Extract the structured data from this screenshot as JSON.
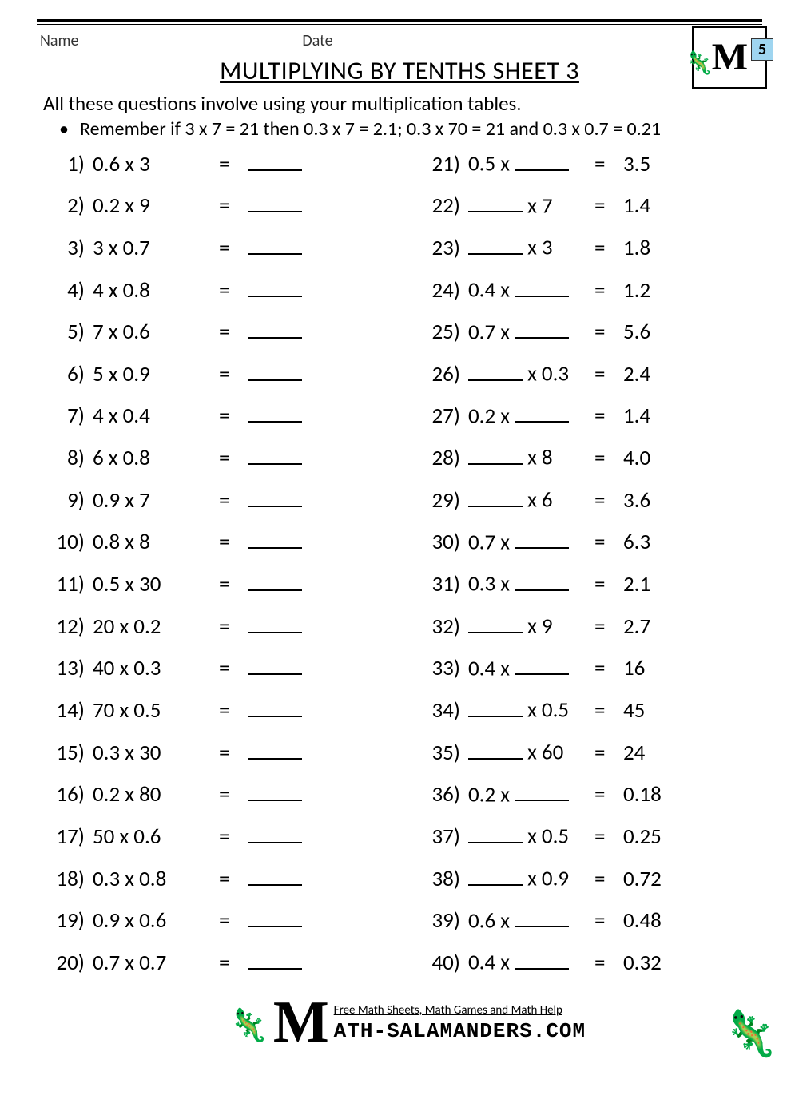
{
  "header": {
    "name_label": "Name",
    "date_label": "Date"
  },
  "badge": {
    "grade": "5"
  },
  "title": "MULTIPLYING BY TENTHS SHEET 3",
  "intro": "All these questions involve using your multiplication tables.",
  "bullet": "Remember if 3 x 7 = 21 then 0.3 x 7 = 2.1; 0.3 x 70 = 21 and 0.3 x 0.7 = 0.21",
  "left": [
    {
      "n": "1)",
      "e": "0.6 x 3"
    },
    {
      "n": "2)",
      "e": "0.2 x 9"
    },
    {
      "n": "3)",
      "e": "3 x 0.7"
    },
    {
      "n": "4)",
      "e": "4 x 0.8"
    },
    {
      "n": "5)",
      "e": "7 x 0.6"
    },
    {
      "n": "6)",
      "e": "5 x 0.9"
    },
    {
      "n": "7)",
      "e": "4 x 0.4"
    },
    {
      "n": "8)",
      "e": "6 x 0.8"
    },
    {
      "n": "9)",
      "e": "0.9 x 7"
    },
    {
      "n": "10)",
      "e": "0.8 x 8"
    },
    {
      "n": "11)",
      "e": "0.5 x 30"
    },
    {
      "n": "12)",
      "e": "20 x 0.2"
    },
    {
      "n": "13)",
      "e": "40 x 0.3"
    },
    {
      "n": "14)",
      "e": "70 x 0.5"
    },
    {
      "n": "15)",
      "e": "0.3 x 30"
    },
    {
      "n": "16)",
      "e": "0.2 x 80"
    },
    {
      "n": "17)",
      "e": "50 x 0.6"
    },
    {
      "n": "18)",
      "e": "0.3 x 0.8"
    },
    {
      "n": "19)",
      "e": "0.9 x 0.6"
    },
    {
      "n": "20)",
      "e": "0.7 x 0.7"
    }
  ],
  "right": [
    {
      "n": "21)",
      "pre": "0.5 x ",
      "post": "",
      "a": "3.5"
    },
    {
      "n": "22)",
      "pre": "",
      "post": " x 7",
      "a": "1.4"
    },
    {
      "n": "23)",
      "pre": "",
      "post": " x 3",
      "a": "1.8"
    },
    {
      "n": "24)",
      "pre": "0.4 x ",
      "post": "",
      "a": "1.2"
    },
    {
      "n": "25)",
      "pre": "0.7 x ",
      "post": "",
      "a": "5.6"
    },
    {
      "n": "26)",
      "pre": "",
      "post": " x 0.3",
      "a": "2.4"
    },
    {
      "n": "27)",
      "pre": "0.2 x ",
      "post": "",
      "a": "1.4"
    },
    {
      "n": "28)",
      "pre": "",
      "post": " x 8",
      "a": "4.0"
    },
    {
      "n": "29)",
      "pre": "",
      "post": " x 6",
      "a": "3.6"
    },
    {
      "n": "30)",
      "pre": "0.7 x ",
      "post": "",
      "a": "6.3"
    },
    {
      "n": "31)",
      "pre": "0.3 x ",
      "post": "",
      "a": "2.1"
    },
    {
      "n": "32)",
      "pre": "",
      "post": " x 9",
      "a": "2.7"
    },
    {
      "n": "33)",
      "pre": "0.4 x ",
      "post": "",
      "a": "16"
    },
    {
      "n": "34)",
      "pre": "",
      "post": " x 0.5",
      "a": "45"
    },
    {
      "n": "35)",
      "pre": "",
      "post": " x 60",
      "a": "24"
    },
    {
      "n": "36)",
      "pre": "0.2 x ",
      "post": "",
      "a": "0.18"
    },
    {
      "n": "37)",
      "pre": "",
      "post": " x 0.5",
      "a": "0.25"
    },
    {
      "n": "38)",
      "pre": "",
      "post": " x 0.9",
      "a": "0.72"
    },
    {
      "n": "39)",
      "pre": "0.6 x ",
      "post": "",
      "a": "0.48"
    },
    {
      "n": "40)",
      "pre": "0.4 x ",
      "post": "",
      "a": "0.32"
    }
  ],
  "footer": {
    "line1": "Free Math Sheets, Math Games and Math Help",
    "line2": "ATH-SALAMANDERS.COM"
  }
}
